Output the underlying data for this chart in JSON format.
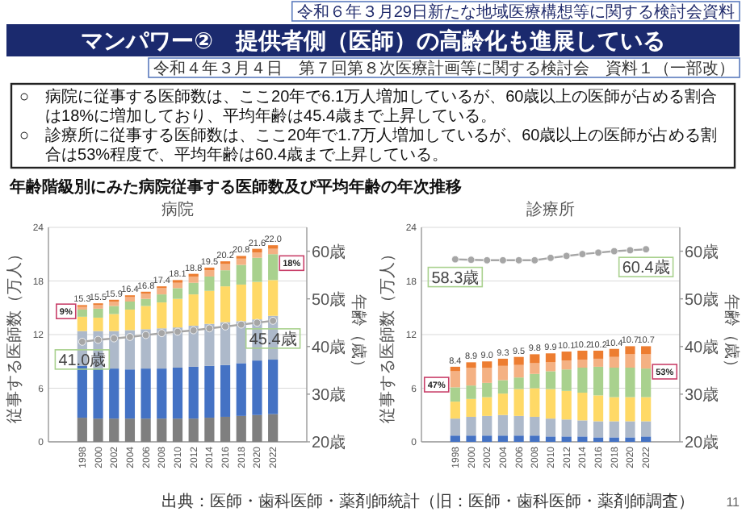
{
  "chart_data": [
    {
      "type": "bar",
      "stacked": true,
      "title": "病院",
      "ylabel": "従事する医師数（万人）",
      "y2label": "年齢（歳）",
      "categories": [
        "1998",
        "2000",
        "2002",
        "2004",
        "2006",
        "2008",
        "2010",
        "2012",
        "2014",
        "2016",
        "2018",
        "2020",
        "2022"
      ],
      "ylim": [
        0,
        24
      ],
      "yticks": [
        0,
        6,
        12,
        18,
        24
      ],
      "y2lim": [
        20,
        65
      ],
      "y2ticks": [
        {
          "value": 20,
          "label": "20歳"
        },
        {
          "value": 30,
          "label": "30歳"
        },
        {
          "value": 40,
          "label": "40歳"
        },
        {
          "value": 50,
          "label": "50歳"
        },
        {
          "value": 60,
          "label": "60歳"
        }
      ],
      "grid": "y",
      "totals": [
        "15.3",
        "15.5",
        "15.9",
        "16.4",
        "16.8",
        "17.4",
        "18.1",
        "18.8",
        "19.5",
        "20.2",
        "20.8",
        "21.6",
        "22.0"
      ],
      "series": [
        {
          "color": "#7f7f7f",
          "values": [
            2.7,
            2.6,
            2.6,
            2.6,
            2.6,
            2.6,
            2.6,
            2.6,
            2.7,
            2.8,
            2.9,
            3.0,
            3.1
          ]
        },
        {
          "color": "#4472c4",
          "values": [
            5.8,
            5.6,
            5.6,
            5.5,
            5.6,
            5.6,
            5.7,
            5.8,
            5.8,
            5.8,
            5.9,
            6.1,
            6.1
          ]
        },
        {
          "color": "#adb9ca",
          "values": [
            3.9,
            4.2,
            4.2,
            4.4,
            4.4,
            4.5,
            4.5,
            4.6,
            4.7,
            4.8,
            4.7,
            4.6,
            4.9
          ]
        },
        {
          "color": "#ffd966",
          "values": [
            1.6,
            1.5,
            1.9,
            2.3,
            2.6,
            2.9,
            3.2,
            3.5,
            3.7,
            4.0,
            4.1,
            4.2,
            4.0
          ]
        },
        {
          "color": "#a9d18e",
          "values": [
            0.8,
            1.0,
            0.9,
            0.9,
            0.8,
            0.9,
            1.2,
            1.3,
            1.6,
            1.8,
            2.2,
            2.7,
            2.9
          ]
        },
        {
          "color": "#f4b183",
          "values": [
            0.3,
            0.4,
            0.5,
            0.5,
            0.6,
            0.7,
            0.6,
            0.7,
            0.7,
            0.7,
            0.7,
            0.6,
            0.6
          ]
        },
        {
          "color": "#ed7d31",
          "values": [
            0.2,
            0.2,
            0.2,
            0.2,
            0.2,
            0.2,
            0.3,
            0.3,
            0.3,
            0.3,
            0.3,
            0.4,
            0.4
          ]
        },
        {
          "type": "line",
          "axis": "y2",
          "marker": "circle",
          "color": "#a6a6a6",
          "values": [
            41.0,
            41.4,
            41.7,
            42.0,
            42.4,
            42.8,
            43.1,
            43.4,
            43.8,
            44.2,
            44.6,
            45.0,
            45.4
          ],
          "value_labels": [
            "41.0歳",
            null,
            null,
            null,
            null,
            null,
            null,
            null,
            null,
            null,
            null,
            null,
            "45.4歳"
          ]
        }
      ],
      "annotations": [
        "令和６年３月29日新たな地域医療構想等に関する検討会資料",
        "マンパワー②　提供者側（医師）の高齢化も進展している",
        "令和４年３月４日　第７回第８次医療計画等に関する検討会　資料１（一部改）",
        "○　病院に従事する医師数は、ここ20年で6.1万人増加しているが、60歳以上の医師が占める割合は18%に増加しており、平均年齢は45.4歳まで上昇している。",
        "○　診療所に従事する医師数は、ここ20年で1.7万人増加しているが、60歳以上の医師が占める割合は53%程度で、平均年齢は60.4歳まで上昇している。",
        "年齢階級別にみた病院従事する医師数及び平均年齢の年次推移",
        "出典：医師・歯科医師・薬剤師統計（旧：医師・歯科医師・薬剤師調査）",
        "11",
        {
          "text": "9%",
          "x": "1998",
          "y": 14.6
        },
        {
          "text": "18%",
          "x": "2022",
          "y": 20.0
        }
      ]
    },
    {
      "type": "bar",
      "stacked": true,
      "title": "診療所",
      "ylabel": "従事する医師数（万人）",
      "y2label": "年齢（歳）",
      "categories": [
        "1998",
        "2000",
        "2002",
        "2004",
        "2006",
        "2008",
        "2010",
        "2012",
        "2014",
        "2016",
        "2018",
        "2020",
        "2022"
      ],
      "ylim": [
        0,
        24
      ],
      "yticks": [
        0,
        6,
        12,
        18,
        24
      ],
      "y2lim": [
        20,
        65
      ],
      "y2ticks": [
        {
          "value": 20,
          "label": "20歳"
        },
        {
          "value": 30,
          "label": "30歳"
        },
        {
          "value": 40,
          "label": "40歳"
        },
        {
          "value": 50,
          "label": "50歳"
        },
        {
          "value": 60,
          "label": "60歳"
        }
      ],
      "grid": "y",
      "totals": [
        "8.4",
        "8.9",
        "9.0",
        "9.3",
        "9.5",
        "9.8",
        "9.9",
        "10.1",
        "10.2",
        "10.2",
        "10.4",
        "10.7",
        "10.7"
      ],
      "series": [
        {
          "color": "#4472c4",
          "values": [
            0.7,
            0.7,
            0.7,
            0.7,
            0.7,
            0.7,
            0.6,
            0.6,
            0.6,
            0.5,
            0.5,
            0.5,
            0.6
          ]
        },
        {
          "color": "#adb9ca",
          "values": [
            1.9,
            2.1,
            2.2,
            2.3,
            2.2,
            2.1,
            2.0,
            1.9,
            1.8,
            1.8,
            1.8,
            1.8,
            1.7
          ]
        },
        {
          "color": "#ffd966",
          "values": [
            1.9,
            2.0,
            2.1,
            2.4,
            3.0,
            3.2,
            3.3,
            3.2,
            3.1,
            2.9,
            2.7,
            2.7,
            2.7
          ]
        },
        {
          "color": "#a9d18e",
          "values": [
            1.6,
            1.5,
            1.6,
            1.5,
            1.3,
            1.6,
            2.0,
            2.4,
            2.8,
            3.2,
            3.3,
            3.3,
            3.2
          ]
        },
        {
          "color": "#f4b183",
          "values": [
            1.8,
            2.0,
            1.7,
            1.6,
            1.4,
            1.2,
            1.0,
            1.0,
            0.9,
            0.9,
            1.2,
            1.5,
            1.6
          ]
        },
        {
          "color": "#ed7d31",
          "values": [
            0.5,
            0.6,
            0.7,
            0.8,
            0.9,
            1.0,
            1.0,
            1.0,
            1.0,
            0.9,
            0.9,
            0.9,
            0.9
          ]
        },
        {
          "type": "line",
          "axis": "y2",
          "marker": "circle",
          "color": "#a6a6a6",
          "values": [
            58.3,
            58.2,
            58.1,
            58.1,
            58.1,
            58.1,
            58.6,
            59.0,
            59.4,
            59.7,
            60.0,
            60.2,
            60.4
          ],
          "value_labels": [
            "58.3歳",
            null,
            null,
            null,
            null,
            null,
            null,
            null,
            null,
            null,
            null,
            null,
            "60.4歳"
          ]
        }
      ],
      "annotations": [
        {
          "text": "47%",
          "x": "1998",
          "y": 6.4
        },
        {
          "text": "53%",
          "x": "2022",
          "y": 7.85
        }
      ]
    }
  ]
}
